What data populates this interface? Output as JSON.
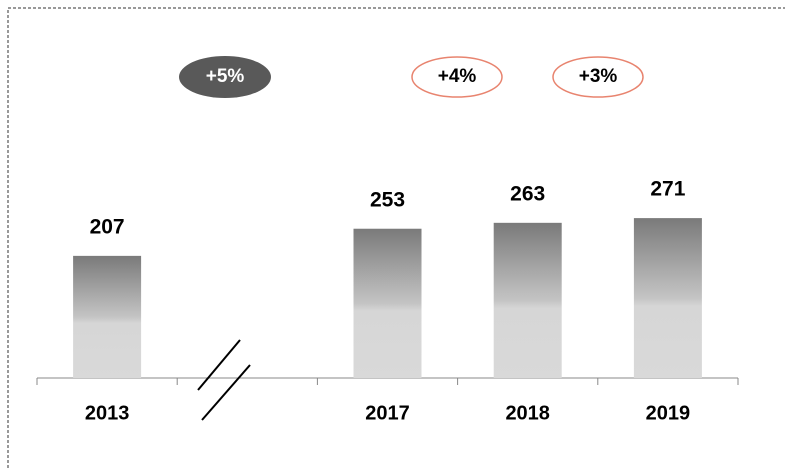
{
  "chart_data": {
    "type": "bar",
    "categories": [
      "2013",
      null,
      "2017",
      "2018",
      "2019"
    ],
    "values": [
      207,
      null,
      253,
      263,
      271
    ],
    "ylim": [
      0,
      300
    ],
    "annotations": [
      "+5%",
      "+4%",
      "+3%"
    ]
  }
}
